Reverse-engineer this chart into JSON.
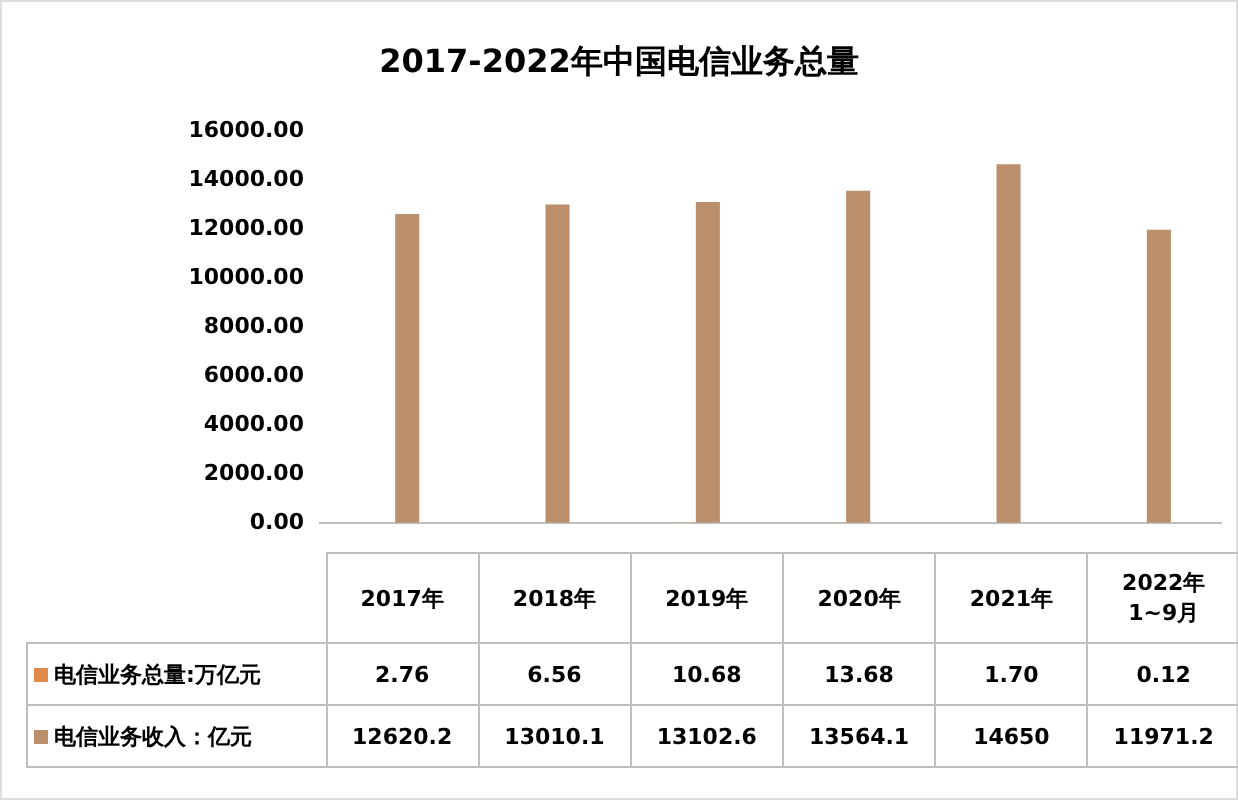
{
  "chart_data": {
    "type": "bar",
    "title": "2017-2022年中国电信业务总量",
    "categories": [
      "2017年",
      "2018年",
      "2019年",
      "2020年",
      "2021年",
      "2022年\n1~9月"
    ],
    "series": [
      {
        "name": "电信业务总量:万亿元",
        "color": "#e08a4c",
        "values": [
          2.76,
          6.56,
          10.68,
          13.68,
          1.7,
          0.12
        ],
        "value_labels": [
          "2.76",
          "6.56",
          "10.68",
          "13.68",
          "1.70",
          "0.12"
        ]
      },
      {
        "name": "电信业务收入：亿元",
        "color": "#bb8f6c",
        "values": [
          12620.2,
          13010.1,
          13102.6,
          13564.1,
          14650,
          11971.2
        ],
        "value_labels": [
          "12620.2",
          "13010.1",
          "13102.6",
          "13564.1",
          "14650",
          "11971.2"
        ]
      }
    ],
    "ylim": [
      0,
      16000
    ],
    "yticks": [
      {
        "value": 0,
        "label": "0.00"
      },
      {
        "value": 2000,
        "label": "2000.00"
      },
      {
        "value": 4000,
        "label": "4000.00"
      },
      {
        "value": 6000,
        "label": "6000.00"
      },
      {
        "value": 8000,
        "label": "8000.00"
      },
      {
        "value": 10000,
        "label": "10000.00"
      },
      {
        "value": 12000,
        "label": "12000.00"
      },
      {
        "value": 14000,
        "label": "14000.00"
      },
      {
        "value": 16000,
        "label": "16000.00"
      }
    ],
    "grid": false,
    "legend": "bottom"
  }
}
